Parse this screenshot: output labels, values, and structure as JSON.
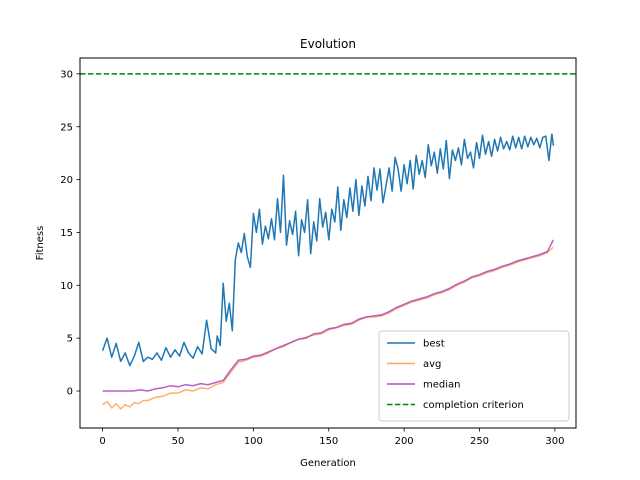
{
  "chart_data": {
    "type": "line",
    "title": "Evolution",
    "xlabel": "Generation",
    "ylabel": "Fitness",
    "xlim": [
      -15,
      314
    ],
    "ylim": [
      -3.5,
      31.5
    ],
    "xticks": [
      0,
      50,
      100,
      150,
      200,
      250,
      300
    ],
    "yticks": [
      0,
      5,
      10,
      15,
      20,
      25,
      30
    ],
    "grid": false,
    "legend_position": "lower-right",
    "series": [
      {
        "name": "best",
        "color": "#1f77b4",
        "style": "solid",
        "x": [
          0,
          3,
          6,
          9,
          12,
          15,
          18,
          21,
          24,
          27,
          30,
          33,
          36,
          39,
          42,
          45,
          48,
          51,
          54,
          57,
          60,
          63,
          66,
          69,
          72,
          75,
          76,
          78,
          80,
          82,
          84,
          86,
          88,
          90,
          92,
          94,
          96,
          98,
          100,
          102,
          104,
          106,
          108,
          110,
          112,
          114,
          116,
          118,
          120,
          122,
          124,
          126,
          128,
          130,
          132,
          134,
          136,
          138,
          140,
          142,
          144,
          146,
          148,
          150,
          152,
          154,
          156,
          158,
          160,
          162,
          164,
          166,
          168,
          170,
          172,
          174,
          176,
          178,
          180,
          182,
          184,
          186,
          188,
          190,
          192,
          194,
          196,
          198,
          200,
          202,
          204,
          206,
          208,
          210,
          212,
          214,
          216,
          218,
          220,
          222,
          224,
          226,
          228,
          230,
          232,
          234,
          236,
          238,
          240,
          242,
          244,
          246,
          248,
          250,
          252,
          254,
          256,
          258,
          260,
          262,
          264,
          266,
          268,
          270,
          272,
          274,
          276,
          278,
          280,
          282,
          284,
          286,
          288,
          290,
          292,
          294,
          296,
          298,
          299
        ],
        "values": [
          3.8,
          5.0,
          3.2,
          4.5,
          2.8,
          3.6,
          2.4,
          3.3,
          4.6,
          2.8,
          3.2,
          3.0,
          3.6,
          2.9,
          4.1,
          3.2,
          3.9,
          3.3,
          4.6,
          3.6,
          3.1,
          4.2,
          3.5,
          6.7,
          4.0,
          3.6,
          5.2,
          4.3,
          10.2,
          6.6,
          8.3,
          5.7,
          12.4,
          14.0,
          13.1,
          14.9,
          12.7,
          11.7,
          16.8,
          15.0,
          17.2,
          13.9,
          15.6,
          14.4,
          16.3,
          14.3,
          18.2,
          15.0,
          20.4,
          13.8,
          16.1,
          14.8,
          17.0,
          12.8,
          16.2,
          15.0,
          18.1,
          13.0,
          16.0,
          14.2,
          18.2,
          15.5,
          16.9,
          14.3,
          17.2,
          16.0,
          19.3,
          15.2,
          18.1,
          16.4,
          19.2,
          17.0,
          20.0,
          16.6,
          19.4,
          17.5,
          20.3,
          18.0,
          21.1,
          19.0,
          21.0,
          17.8,
          19.4,
          21.1,
          18.9,
          22.1,
          21.0,
          18.9,
          21.4,
          19.6,
          21.8,
          19.1,
          22.3,
          20.5,
          21.8,
          20.2,
          23.3,
          21.3,
          22.6,
          20.6,
          22.9,
          21.0,
          23.7,
          20.1,
          22.8,
          21.8,
          23.0,
          21.4,
          23.8,
          22.0,
          22.6,
          21.1,
          23.5,
          22.0,
          24.2,
          22.4,
          23.6,
          22.2,
          23.8,
          22.7,
          24.0,
          22.9,
          23.6,
          22.8,
          24.1,
          23.0,
          24.0,
          22.9,
          24.1,
          23.1,
          24.0,
          23.3,
          23.9,
          23.0,
          24.0,
          24.1,
          21.8,
          24.3,
          23.2
        ]
      },
      {
        "name": "avg",
        "color": "#ffa85e",
        "style": "solid",
        "x": [
          0,
          3,
          6,
          9,
          12,
          15,
          18,
          21,
          24,
          27,
          30,
          35,
          40,
          45,
          50,
          55,
          60,
          65,
          70,
          75,
          80,
          85,
          90,
          95,
          100,
          105,
          110,
          115,
          120,
          125,
          130,
          135,
          140,
          145,
          150,
          155,
          160,
          165,
          170,
          175,
          180,
          185,
          190,
          195,
          200,
          205,
          210,
          215,
          220,
          225,
          230,
          235,
          240,
          245,
          250,
          255,
          260,
          265,
          270,
          275,
          280,
          285,
          290,
          295,
          299
        ],
        "values": [
          -1.3,
          -1.0,
          -1.6,
          -1.2,
          -1.7,
          -1.3,
          -1.5,
          -1.1,
          -1.2,
          -0.9,
          -0.9,
          -0.6,
          -0.5,
          -0.2,
          -0.2,
          0.1,
          0.0,
          0.3,
          0.2,
          0.6,
          0.8,
          1.8,
          2.7,
          2.9,
          3.2,
          3.3,
          3.6,
          4.0,
          4.2,
          4.6,
          4.9,
          5.1,
          5.3,
          5.4,
          5.8,
          6.0,
          6.2,
          6.3,
          6.7,
          7.0,
          7.0,
          7.1,
          7.4,
          7.8,
          8.1,
          8.4,
          8.6,
          8.8,
          9.1,
          9.3,
          9.6,
          10.0,
          10.3,
          10.7,
          10.9,
          11.2,
          11.4,
          11.7,
          11.9,
          12.2,
          12.4,
          12.6,
          12.8,
          13.1,
          13.6
        ]
      },
      {
        "name": "median",
        "color": "#b04fbf",
        "style": "solid",
        "x": [
          0,
          10,
          20,
          25,
          30,
          35,
          40,
          45,
          50,
          55,
          60,
          65,
          70,
          75,
          80,
          85,
          90,
          95,
          100,
          105,
          110,
          115,
          120,
          125,
          130,
          135,
          140,
          145,
          150,
          155,
          160,
          165,
          170,
          175,
          180,
          185,
          190,
          195,
          200,
          205,
          210,
          215,
          220,
          225,
          230,
          235,
          240,
          245,
          250,
          255,
          260,
          265,
          270,
          275,
          280,
          285,
          290,
          295,
          299
        ],
        "values": [
          0.0,
          0.0,
          0.0,
          0.1,
          0.0,
          0.2,
          0.3,
          0.5,
          0.4,
          0.6,
          0.5,
          0.7,
          0.6,
          0.8,
          1.0,
          2.0,
          2.9,
          3.0,
          3.3,
          3.4,
          3.7,
          4.0,
          4.3,
          4.6,
          4.9,
          5.0,
          5.4,
          5.5,
          5.9,
          6.0,
          6.3,
          6.4,
          6.8,
          7.0,
          7.1,
          7.2,
          7.5,
          7.9,
          8.2,
          8.5,
          8.7,
          8.9,
          9.2,
          9.4,
          9.7,
          10.1,
          10.4,
          10.8,
          11.0,
          11.3,
          11.5,
          11.8,
          12.0,
          12.3,
          12.5,
          12.7,
          12.9,
          13.2,
          14.3
        ]
      },
      {
        "name": "completion criterion",
        "color": "#008000",
        "style": "dashed",
        "x": [
          -15,
          314
        ],
        "values": [
          30,
          30
        ]
      }
    ]
  }
}
